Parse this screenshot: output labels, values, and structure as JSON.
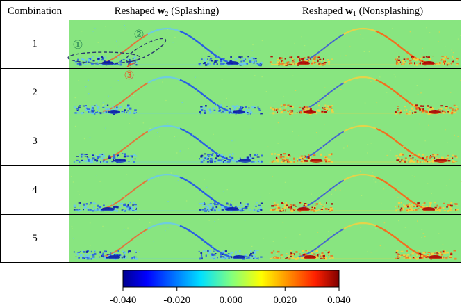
{
  "table": {
    "header": {
      "col0": "Combination",
      "col1": {
        "prefix": "Reshaped ",
        "bold": "w",
        "sub": "2",
        "suffix": " (Splashing)"
      },
      "col2": {
        "prefix": "Reshaped ",
        "bold": "w",
        "sub": "1",
        "suffix": " (Nonsplashing)"
      }
    },
    "rows": [
      "1",
      "2",
      "3",
      "4",
      "5"
    ]
  },
  "annotations": {
    "marker_1": "①",
    "marker_2": "②",
    "marker_3": "③",
    "colors": {
      "ellipse": "#2a3a6e",
      "marker_1": "#2e8b57",
      "marker_2": "#2e8b57",
      "marker_3": "#e8582a"
    }
  },
  "colorbar": {
    "min": -0.04,
    "max": 0.04,
    "ticks": [
      "-0.040",
      "-0.020",
      "0.000",
      "0.020",
      "0.040"
    ],
    "colormap": "jet"
  },
  "heatmap_colors": {
    "background": "#88e580",
    "positive_strong": "#b00000",
    "positive": "#f07020",
    "positive_weak": "#f6d040",
    "negative_strong": "#0a1aa8",
    "negative": "#2a60e0",
    "negative_weak": "#6ac8f0"
  }
}
